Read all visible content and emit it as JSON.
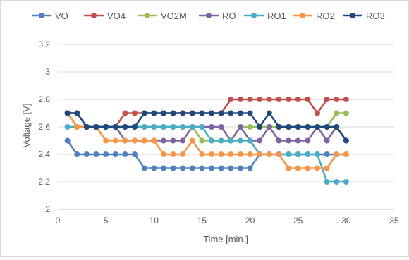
{
  "chart_data": {
    "type": "line",
    "title": "",
    "xlabel": "Time [min.]",
    "ylabel": "Voltage [V]",
    "xlim": [
      0,
      35
    ],
    "ylim": [
      2,
      3.2
    ],
    "x_ticks": [
      "0",
      "5",
      "10",
      "15",
      "20",
      "25",
      "30",
      "35"
    ],
    "y_ticks": [
      "2",
      "2,2",
      "2,4",
      "2,6",
      "2,8",
      "3",
      "3,2"
    ],
    "grid": "horizontal",
    "legend_position": "top",
    "x": [
      1,
      2,
      3,
      4,
      5,
      6,
      7,
      8,
      9,
      10,
      11,
      12,
      13,
      14,
      15,
      16,
      17,
      18,
      19,
      20,
      21,
      22,
      23,
      24,
      25,
      26,
      27,
      28,
      29,
      30
    ],
    "series": [
      {
        "name": "VO",
        "color": "#4f81bd",
        "values": [
          2.5,
          2.4,
          2.4,
          2.4,
          2.4,
          2.4,
          2.4,
          2.4,
          2.3,
          2.3,
          2.3,
          2.3,
          2.3,
          2.3,
          2.3,
          2.3,
          2.3,
          2.3,
          2.3,
          2.3,
          2.4,
          2.4,
          2.4,
          2.4,
          2.4,
          2.4,
          2.4,
          2.4,
          2.4,
          2.4
        ]
      },
      {
        "name": "VO4",
        "color": "#c0504d",
        "values": [
          2.7,
          2.7,
          2.6,
          2.6,
          2.6,
          2.6,
          2.7,
          2.7,
          2.7,
          2.7,
          2.7,
          2.7,
          2.7,
          2.7,
          2.7,
          2.7,
          2.7,
          2.8,
          2.8,
          2.8,
          2.8,
          2.8,
          2.8,
          2.8,
          2.8,
          2.8,
          2.7,
          2.8,
          2.8,
          2.8
        ]
      },
      {
        "name": "VO2M",
        "color": "#9bbb59",
        "values": [
          2.7,
          2.6,
          2.6,
          2.6,
          2.6,
          2.6,
          2.6,
          2.6,
          2.6,
          2.6,
          2.6,
          2.6,
          2.6,
          2.6,
          2.5,
          2.5,
          2.5,
          2.5,
          2.6,
          2.6,
          2.6,
          2.6,
          2.6,
          2.6,
          2.6,
          2.6,
          2.6,
          2.6,
          2.7,
          2.7
        ]
      },
      {
        "name": "RO",
        "color": "#8064a2",
        "values": [
          2.7,
          2.6,
          2.6,
          2.6,
          2.6,
          2.6,
          2.5,
          2.5,
          2.5,
          2.5,
          2.5,
          2.5,
          2.5,
          2.6,
          2.6,
          2.6,
          2.6,
          2.5,
          2.6,
          2.5,
          2.5,
          2.6,
          2.5,
          2.5,
          2.5,
          2.5,
          2.6,
          2.5,
          2.6,
          2.5
        ]
      },
      {
        "name": "RO1",
        "color": "#4bacc6",
        "values": [
          2.6,
          2.6,
          2.6,
          2.6,
          2.6,
          2.6,
          2.6,
          2.6,
          2.6,
          2.6,
          2.6,
          2.6,
          2.6,
          2.6,
          2.6,
          2.5,
          2.5,
          2.5,
          2.5,
          2.5,
          2.4,
          2.4,
          2.4,
          2.4,
          2.4,
          2.4,
          2.4,
          2.2,
          2.2,
          2.2
        ]
      },
      {
        "name": "RO2",
        "color": "#f79646",
        "values": [
          2.7,
          2.6,
          2.6,
          2.6,
          2.5,
          2.5,
          2.5,
          2.5,
          2.5,
          2.5,
          2.4,
          2.4,
          2.4,
          2.5,
          2.4,
          2.4,
          2.4,
          2.4,
          2.4,
          2.4,
          2.4,
          2.4,
          2.4,
          2.3,
          2.3,
          2.3,
          2.3,
          2.3,
          2.4,
          2.4
        ]
      },
      {
        "name": "RO3",
        "color": "#1f497d",
        "values": [
          2.7,
          2.7,
          2.6,
          2.6,
          2.6,
          2.6,
          2.6,
          2.6,
          2.7,
          2.7,
          2.7,
          2.7,
          2.7,
          2.7,
          2.7,
          2.7,
          2.7,
          2.7,
          2.7,
          2.7,
          2.6,
          2.7,
          2.6,
          2.6,
          2.6,
          2.6,
          2.6,
          2.6,
          2.6,
          2.5
        ]
      }
    ]
  }
}
